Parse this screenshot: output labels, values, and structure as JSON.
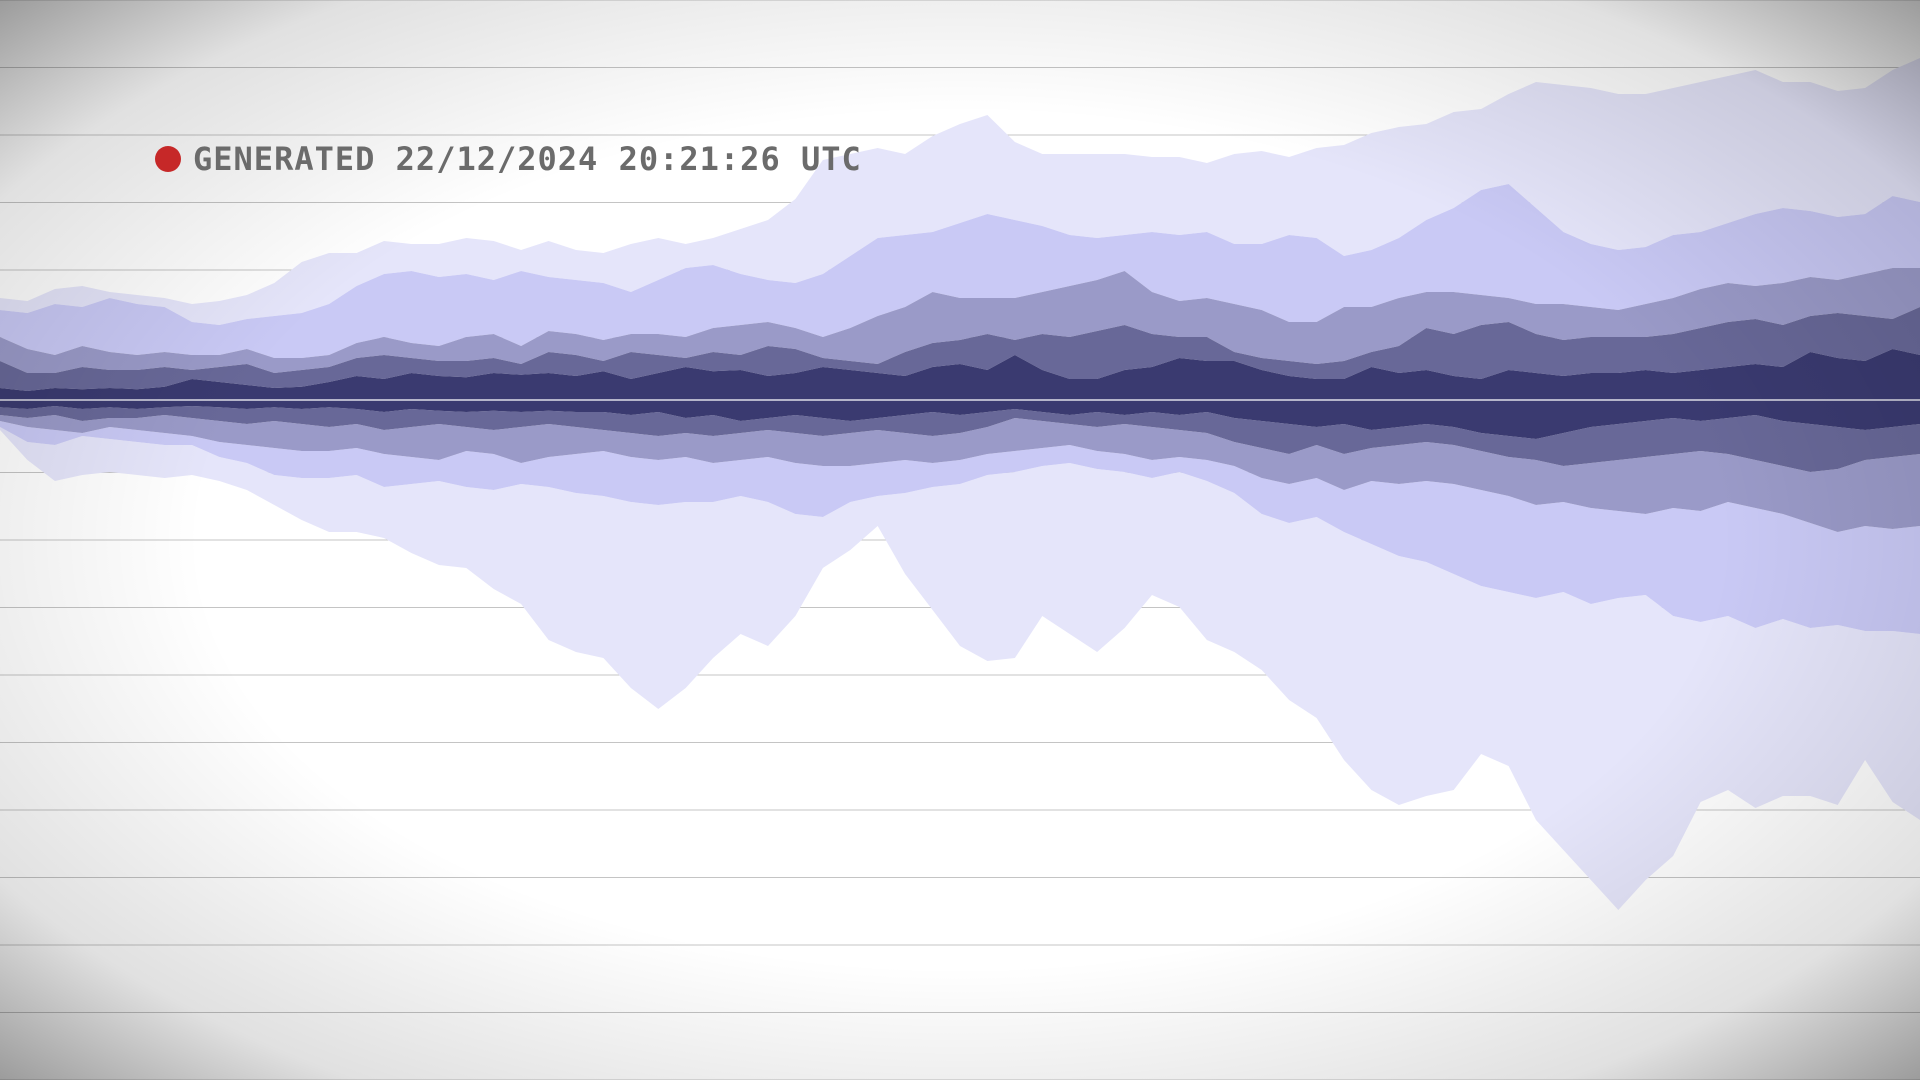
{
  "status": {
    "text": "GENERATED 22/12/2024 20:21:26 UTC",
    "dot_color": "#c62828",
    "text_color": "#6b6b6b"
  },
  "chart_data": {
    "type": "area",
    "subtype": "mirrored-horizon",
    "title": "",
    "xlabel": "",
    "ylabel": "",
    "grid": true,
    "vignette": true,
    "baseline_color": "#ffffff",
    "band_colors": [
      "#3a3a70",
      "#686898",
      "#9a9ac8",
      "#c9c9f5",
      "#e5e5fa"
    ],
    "x": [
      0,
      1,
      2,
      3,
      4,
      5,
      6,
      7,
      8,
      9,
      10,
      11,
      12,
      13,
      14,
      15,
      16,
      17,
      18,
      19,
      20,
      21,
      22,
      23,
      24,
      25,
      26,
      27,
      28,
      29,
      30,
      31,
      32,
      33,
      34,
      35,
      36,
      37,
      38,
      39,
      40,
      41,
      42,
      43,
      44,
      45,
      46,
      47,
      48,
      49,
      50,
      51,
      52,
      53,
      54,
      55,
      56,
      57,
      58,
      59,
      60,
      61,
      62,
      63,
      64,
      65,
      66,
      67,
      68,
      69,
      70
    ],
    "upper": [
      [
        0.2,
        0.15,
        0.2,
        0.18,
        0.2,
        0.18,
        0.22,
        0.35,
        0.3,
        0.25,
        0.2,
        0.22,
        0.3,
        0.4,
        0.35,
        0.45,
        0.4,
        0.38,
        0.45,
        0.42,
        0.45,
        0.4,
        0.48,
        0.35,
        0.45,
        0.55,
        0.48,
        0.5,
        0.4,
        0.45,
        0.55,
        0.5,
        0.45,
        0.4,
        0.55,
        0.6,
        0.5,
        0.75,
        0.5,
        0.35,
        0.35,
        0.5,
        0.55,
        0.7,
        0.65,
        0.65,
        0.5,
        0.4,
        0.35,
        0.35,
        0.55,
        0.45,
        0.5,
        0.4,
        0.35,
        0.5,
        0.45,
        0.4,
        0.45,
        0.45,
        0.5,
        0.45,
        0.5,
        0.55,
        0.6,
        0.55,
        0.8,
        0.7,
        0.65,
        0.85,
        0.75
      ],
      [
        0.65,
        0.45,
        0.45,
        0.55,
        0.5,
        0.5,
        0.55,
        0.5,
        0.55,
        0.6,
        0.45,
        0.5,
        0.55,
        0.7,
        0.75,
        0.7,
        0.65,
        0.65,
        0.7,
        0.6,
        0.8,
        0.75,
        0.65,
        0.8,
        0.75,
        0.7,
        0.8,
        0.75,
        0.9,
        0.85,
        0.7,
        0.65,
        0.6,
        0.8,
        0.95,
        1.0,
        1.1,
        1.0,
        1.1,
        1.05,
        1.15,
        1.25,
        1.1,
        1.05,
        1.05,
        0.8,
        0.7,
        0.65,
        0.6,
        0.65,
        0.8,
        0.9,
        1.2,
        1.1,
        1.25,
        1.3,
        1.1,
        1.0,
        1.05,
        1.05,
        1.05,
        1.1,
        1.2,
        1.3,
        1.35,
        1.25,
        1.4,
        1.45,
        1.4,
        1.35,
        1.55
      ],
      [
        1.05,
        0.85,
        0.75,
        0.9,
        0.8,
        0.75,
        0.8,
        0.75,
        0.75,
        0.85,
        0.7,
        0.7,
        0.75,
        0.95,
        1.05,
        0.95,
        0.9,
        1.05,
        1.1,
        0.9,
        1.15,
        1.1,
        1.0,
        1.1,
        1.1,
        1.05,
        1.2,
        1.25,
        1.3,
        1.2,
        1.05,
        1.2,
        1.4,
        1.55,
        1.8,
        1.7,
        1.7,
        1.7,
        1.8,
        1.9,
        2.0,
        2.15,
        1.8,
        1.65,
        1.7,
        1.6,
        1.5,
        1.3,
        1.3,
        1.55,
        1.55,
        1.7,
        1.8,
        1.8,
        1.75,
        1.7,
        1.6,
        1.6,
        1.55,
        1.5,
        1.6,
        1.7,
        1.85,
        1.95,
        1.9,
        1.95,
        2.05,
        2.0,
        2.1,
        2.2,
        2.2
      ],
      [
        1.5,
        1.45,
        1.6,
        1.55,
        1.7,
        1.6,
        1.55,
        1.3,
        1.25,
        1.35,
        1.4,
        1.45,
        1.6,
        1.9,
        2.1,
        2.15,
        2.05,
        2.1,
        2.0,
        2.15,
        2.05,
        2.0,
        1.95,
        1.8,
        2.0,
        2.2,
        2.25,
        2.1,
        2.0,
        1.95,
        2.1,
        2.4,
        2.7,
        2.75,
        2.8,
        2.95,
        3.1,
        3.0,
        2.9,
        2.75,
        2.7,
        2.75,
        2.8,
        2.75,
        2.8,
        2.6,
        2.6,
        2.75,
        2.7,
        2.4,
        2.5,
        2.7,
        3.0,
        3.2,
        3.5,
        3.6,
        3.2,
        2.8,
        2.6,
        2.5,
        2.55,
        2.75,
        2.8,
        2.95,
        3.1,
        3.2,
        3.15,
        3.05,
        3.1,
        3.4,
        3.3
      ],
      [
        1.7,
        1.65,
        1.85,
        1.9,
        1.8,
        1.75,
        1.7,
        1.6,
        1.65,
        1.75,
        1.95,
        2.3,
        2.45,
        2.45,
        2.65,
        2.6,
        2.6,
        2.7,
        2.65,
        2.5,
        2.65,
        2.5,
        2.45,
        2.6,
        2.7,
        2.6,
        2.7,
        2.85,
        3.0,
        3.35,
        4.0,
        4.1,
        4.2,
        4.1,
        4.4,
        4.6,
        4.75,
        4.3,
        4.1,
        4.1,
        4.1,
        4.1,
        4.05,
        4.05,
        3.95,
        4.1,
        4.15,
        4.05,
        4.2,
        4.25,
        4.45,
        4.55,
        4.6,
        4.8,
        4.85,
        5.1,
        5.3,
        5.25,
        5.2,
        5.1,
        5.1,
        5.2,
        5.3,
        5.4,
        5.5,
        5.3,
        5.3,
        5.15,
        5.2,
        5.5,
        5.7
      ]
    ],
    "lower": [
      [
        0.12,
        0.15,
        0.1,
        0.15,
        0.12,
        0.15,
        0.12,
        0.1,
        0.12,
        0.15,
        0.12,
        0.15,
        0.12,
        0.15,
        0.2,
        0.15,
        0.18,
        0.2,
        0.18,
        0.2,
        0.18,
        0.2,
        0.2,
        0.25,
        0.2,
        0.3,
        0.25,
        0.35,
        0.3,
        0.25,
        0.3,
        0.35,
        0.3,
        0.25,
        0.2,
        0.25,
        0.2,
        0.15,
        0.2,
        0.25,
        0.2,
        0.25,
        0.2,
        0.25,
        0.2,
        0.3,
        0.35,
        0.4,
        0.45,
        0.4,
        0.5,
        0.45,
        0.4,
        0.45,
        0.55,
        0.6,
        0.65,
        0.55,
        0.45,
        0.4,
        0.35,
        0.3,
        0.35,
        0.3,
        0.25,
        0.35,
        0.4,
        0.45,
        0.5,
        0.45,
        0.4
      ],
      [
        0.25,
        0.3,
        0.25,
        0.35,
        0.3,
        0.3,
        0.25,
        0.3,
        0.35,
        0.4,
        0.35,
        0.4,
        0.45,
        0.4,
        0.5,
        0.45,
        0.4,
        0.45,
        0.5,
        0.45,
        0.4,
        0.45,
        0.5,
        0.55,
        0.6,
        0.55,
        0.6,
        0.55,
        0.5,
        0.55,
        0.6,
        0.55,
        0.5,
        0.55,
        0.6,
        0.55,
        0.45,
        0.3,
        0.35,
        0.4,
        0.45,
        0.4,
        0.45,
        0.5,
        0.55,
        0.7,
        0.8,
        0.9,
        0.75,
        0.9,
        0.8,
        0.75,
        0.7,
        0.75,
        0.85,
        0.95,
        1.0,
        1.1,
        1.05,
        1.0,
        0.95,
        0.9,
        0.85,
        0.9,
        1.0,
        1.1,
        1.2,
        1.15,
        1.0,
        0.95,
        0.9
      ],
      [
        0.35,
        0.45,
        0.5,
        0.55,
        0.45,
        0.5,
        0.55,
        0.6,
        0.7,
        0.75,
        0.8,
        0.85,
        0.85,
        0.8,
        0.9,
        0.95,
        1.0,
        0.85,
        0.9,
        1.05,
        0.95,
        0.9,
        0.85,
        0.95,
        1.0,
        0.95,
        1.05,
        1.0,
        0.95,
        1.05,
        1.1,
        1.1,
        1.05,
        1.0,
        1.05,
        1.0,
        0.9,
        0.85,
        0.8,
        0.75,
        0.85,
        0.9,
        1.0,
        0.95,
        1.0,
        1.1,
        1.3,
        1.4,
        1.3,
        1.5,
        1.35,
        1.4,
        1.35,
        1.4,
        1.5,
        1.6,
        1.75,
        1.7,
        1.8,
        1.85,
        1.9,
        1.8,
        1.85,
        1.7,
        1.8,
        1.9,
        2.05,
        2.2,
        2.1,
        2.15,
        2.1
      ],
      [
        0.45,
        0.7,
        0.75,
        0.6,
        0.65,
        0.7,
        0.75,
        0.75,
        0.95,
        1.05,
        1.25,
        1.3,
        1.3,
        1.25,
        1.45,
        1.4,
        1.35,
        1.45,
        1.5,
        1.4,
        1.45,
        1.55,
        1.6,
        1.7,
        1.75,
        1.7,
        1.7,
        1.6,
        1.7,
        1.9,
        1.95,
        1.7,
        1.6,
        1.55,
        1.45,
        1.4,
        1.25,
        1.2,
        1.1,
        1.05,
        1.15,
        1.2,
        1.3,
        1.2,
        1.35,
        1.55,
        1.9,
        2.05,
        1.95,
        2.2,
        2.4,
        2.6,
        2.7,
        2.9,
        3.1,
        3.2,
        3.3,
        3.2,
        3.4,
        3.3,
        3.25,
        3.6,
        3.7,
        3.6,
        3.8,
        3.65,
        3.8,
        3.75,
        3.85,
        3.85,
        3.9
      ],
      [
        0.5,
        1.0,
        1.35,
        1.25,
        1.2,
        1.25,
        1.3,
        1.25,
        1.35,
        1.5,
        1.75,
        2.0,
        2.2,
        2.2,
        2.3,
        2.55,
        2.75,
        2.8,
        3.15,
        3.4,
        4.0,
        4.2,
        4.3,
        4.8,
        5.15,
        4.8,
        4.3,
        3.9,
        4.1,
        3.6,
        2.8,
        2.5,
        2.1,
        2.9,
        3.5,
        4.1,
        4.35,
        4.3,
        3.6,
        3.9,
        4.2,
        3.8,
        3.25,
        3.45,
        4.0,
        4.2,
        4.5,
        5.0,
        5.3,
        6.0,
        6.5,
        6.75,
        6.6,
        6.5,
        5.9,
        6.1,
        7.0,
        7.5,
        8.0,
        8.5,
        8.0,
        7.6,
        6.7,
        6.5,
        6.8,
        6.6,
        6.6,
        6.75,
        6.0,
        6.7,
        7.0
      ]
    ]
  }
}
